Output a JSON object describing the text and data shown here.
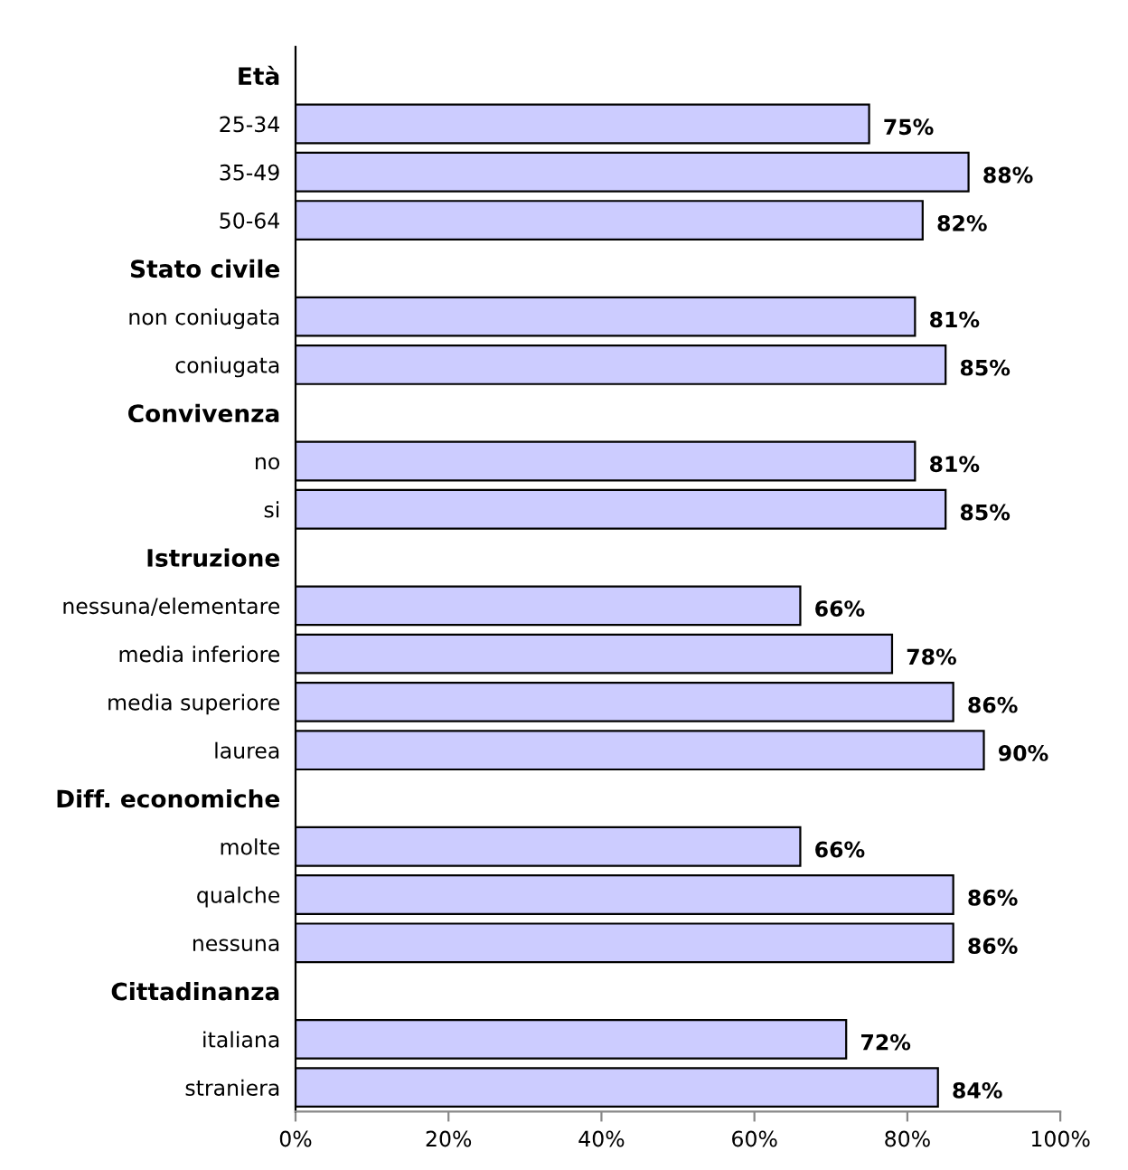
{
  "chart_data": {
    "type": "bar",
    "orientation": "horizontal",
    "categories": [
      "Età",
      "25-34",
      "35-49",
      "50-64",
      "Stato civile",
      "non coniugata",
      "coniugata",
      "Convivenza",
      "no",
      "si",
      "Istruzione",
      "nessuna/elementare",
      "media inferiore",
      "media superiore",
      "laurea",
      "Diff. economiche",
      "molte",
      "qualche",
      "nessuna",
      "Cittadinanza",
      "italiana",
      "straniera"
    ],
    "values": [
      null,
      75,
      88,
      82,
      null,
      81,
      85,
      null,
      81,
      85,
      null,
      66,
      78,
      86,
      90,
      null,
      66,
      86,
      86,
      null,
      72,
      84
    ],
    "value_labels": [
      null,
      "75%",
      "88%",
      "82%",
      null,
      "81%",
      "85%",
      null,
      "81%",
      "85%",
      null,
      "66%",
      "78%",
      "86%",
      "90%",
      null,
      "66%",
      "86%",
      "86%",
      null,
      "72%",
      "84%"
    ],
    "color": "#ccccff",
    "xlim": [
      0,
      100
    ],
    "xticks": [
      {
        "value": 0,
        "label": "0%"
      },
      {
        "value": 20,
        "label": "20%"
      },
      {
        "value": 40,
        "label": "40%"
      },
      {
        "value": 60,
        "label": "60%"
      },
      {
        "value": 80,
        "label": "80%"
      },
      {
        "value": 100,
        "label": "100%"
      }
    ],
    "grid": false
  }
}
